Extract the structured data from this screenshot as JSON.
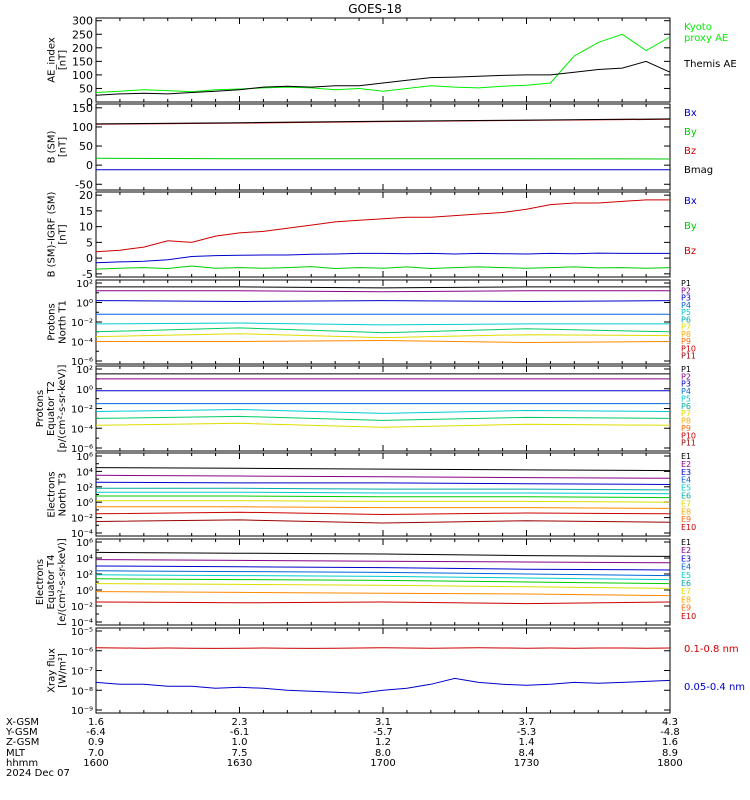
{
  "title": "GOES-18",
  "colors": {
    "black": "#000000",
    "green": "#00cc00",
    "bright_green": "#00ee00",
    "red": "#cc0000",
    "dark_red": "#990000",
    "blue": "#0000cc",
    "navy": "#000088",
    "cyan": "#00cccc",
    "orange": "#ff8800",
    "yellow": "#dddd00",
    "lime": "#66dd00",
    "magenta": "#aa00aa"
  },
  "chart_data": [
    {
      "type": "line",
      "ylabel": "AE_index\n[nT]",
      "yticks": [
        "300",
        "250",
        "200",
        "150",
        "100",
        "50",
        "0"
      ],
      "ylim": [
        0,
        310
      ],
      "x": [
        "1600",
        "1605",
        "1610",
        "1615",
        "1620",
        "1625",
        "1630",
        "1635",
        "1640",
        "1645",
        "1650",
        "1655",
        "1700",
        "1705",
        "1710",
        "1715",
        "1720",
        "1725",
        "1730",
        "1735",
        "1740",
        "1745",
        "1750",
        "1755",
        "1800"
      ],
      "series": [
        {
          "name": "Kyoto\nproxy AE",
          "color": "#00ee00",
          "values": [
            35,
            40,
            45,
            42,
            38,
            45,
            48,
            52,
            55,
            52,
            45,
            50,
            40,
            50,
            60,
            55,
            52,
            58,
            62,
            70,
            170,
            220,
            250,
            190,
            240
          ]
        },
        {
          "name": "Themis AE",
          "color": "#000000",
          "values": [
            25,
            30,
            32,
            30,
            35,
            40,
            45,
            55,
            58,
            55,
            60,
            60,
            70,
            80,
            90,
            92,
            95,
            98,
            100,
            100,
            110,
            120,
            125,
            150,
            110
          ]
        }
      ]
    },
    {
      "type": "line",
      "ylabel": "B (SM)\n[nT]",
      "yticks": [
        "150",
        "100",
        "50",
        "0",
        "-50"
      ],
      "ylim": [
        -65,
        160
      ],
      "x": [
        "1600",
        "1630",
        "1700",
        "1730",
        "1800"
      ],
      "series": [
        {
          "name": "Bx",
          "color": "#0000cc",
          "values": [
            -12,
            -12,
            -12,
            -12,
            -12
          ]
        },
        {
          "name": "By",
          "color": "#00cc00",
          "values": [
            18,
            17,
            17,
            17,
            16
          ]
        },
        {
          "name": "Bz",
          "color": "#cc0000",
          "values": [
            107,
            110,
            114,
            117,
            120
          ]
        },
        {
          "name": "Bmag",
          "color": "#000000",
          "values": [
            108,
            111,
            115,
            118,
            121
          ]
        }
      ]
    },
    {
      "type": "line",
      "ylabel": "B (SM)-IGRF (SM)\n[nT]",
      "yticks": [
        "20",
        "15",
        "10",
        "5",
        "0",
        "-5"
      ],
      "ylim": [
        -6,
        21
      ],
      "x": [
        "1600",
        "1605",
        "1610",
        "1615",
        "1620",
        "1625",
        "1630",
        "1635",
        "1640",
        "1645",
        "1650",
        "1655",
        "1700",
        "1705",
        "1710",
        "1715",
        "1720",
        "1725",
        "1730",
        "1735",
        "1740",
        "1745",
        "1750",
        "1755",
        "1800"
      ],
      "series": [
        {
          "name": "Bx",
          "color": "#0000cc",
          "values": [
            -1.5,
            -1.2,
            -1.0,
            -0.5,
            0.5,
            0.8,
            0.9,
            1.0,
            1.0,
            1.2,
            1.3,
            1.5,
            1.5,
            1.4,
            1.5,
            1.3,
            1.5,
            1.4,
            1.3,
            1.5,
            1.4,
            1.6,
            1.5,
            1.5,
            1.5
          ]
        },
        {
          "name": "By",
          "color": "#00cc00",
          "values": [
            -3.5,
            -3.2,
            -3.0,
            -3.3,
            -2.5,
            -3.2,
            -3.0,
            -3.2,
            -3.0,
            -2.7,
            -3.3,
            -3.0,
            -3.2,
            -2.8,
            -3.3,
            -3.0,
            -2.8,
            -3.0,
            -3.2,
            -3.0,
            -2.8,
            -3.1,
            -3.0,
            -3.2,
            -3.0
          ]
        },
        {
          "name": "Bz",
          "color": "#cc0000",
          "values": [
            2.0,
            2.5,
            3.5,
            5.5,
            5.0,
            7.0,
            8.0,
            8.5,
            9.5,
            10.5,
            11.5,
            12.0,
            12.5,
            13.0,
            13.0,
            13.5,
            14.0,
            14.5,
            15.5,
            17.0,
            17.5,
            17.5,
            18.0,
            18.5,
            18.5
          ]
        }
      ]
    },
    {
      "type": "line",
      "ylabel": "Protons\nNorth T1",
      "yticks": [
        "10²",
        "10⁰",
        "10⁻²",
        "10⁻⁴",
        "10⁻⁶"
      ],
      "legend": [
        "P1",
        "P2",
        "P3",
        "P4",
        "P5",
        "P6",
        "P7",
        "P8",
        "P9",
        "P10",
        "P11"
      ],
      "series": [
        {
          "name": "P1",
          "color": "#000000",
          "log10": [
            1.6,
            1.6,
            1.5,
            1.6,
            1.6
          ]
        },
        {
          "name": "P2",
          "color": "#880088",
          "log10": [
            1.2,
            1.2,
            1.1,
            1.2,
            1.2
          ]
        },
        {
          "name": "P3",
          "color": "#0000cc",
          "log10": [
            0.2,
            0.1,
            0.2,
            0.1,
            0.2
          ]
        },
        {
          "name": "P4",
          "color": "#0066dd",
          "log10": [
            -1.2,
            -1.2,
            -1.2,
            -1.2,
            -1.2
          ]
        },
        {
          "name": "P5",
          "color": "#00cccc",
          "log10": [
            -2.2,
            -2.1,
            -2.3,
            -2.2,
            -2.2
          ]
        },
        {
          "name": "P6",
          "color": "#00cc66",
          "log10": [
            -3.0,
            -2.6,
            -3.1,
            -2.7,
            -3.0
          ]
        },
        {
          "name": "P7",
          "color": "#dddd00",
          "log10": [
            -3.5,
            -3.2,
            -3.6,
            -3.3,
            -3.4
          ]
        },
        {
          "name": "P8",
          "color": "#ff8800",
          "log10": [
            -4.0,
            -4.0,
            -3.9,
            -4.1,
            -4.0
          ]
        }
      ]
    },
    {
      "type": "line",
      "ylabel": "Protons\nEquator T2\n[p/(cm²-s-sr-keV)]",
      "yticks": [
        "10²",
        "10⁰",
        "10⁻²",
        "10⁻⁴",
        "10⁻⁶"
      ],
      "legend": [
        "P1",
        "P2",
        "P3",
        "P4",
        "P5",
        "P6",
        "P7",
        "P8",
        "P9",
        "P10",
        "P11"
      ],
      "series": [
        {
          "name": "P1",
          "color": "#000000",
          "log10": [
            1.5,
            1.5,
            1.5,
            1.5,
            1.5
          ]
        },
        {
          "name": "P2",
          "color": "#880088",
          "log10": [
            1.0,
            1.0,
            1.0,
            1.0,
            1.0
          ]
        },
        {
          "name": "P3",
          "color": "#0000cc",
          "log10": [
            -0.2,
            -0.2,
            -0.2,
            -0.2,
            -0.2
          ]
        },
        {
          "name": "P4",
          "color": "#0066dd",
          "log10": [
            -1.5,
            -1.5,
            -1.5,
            -1.5,
            -1.5
          ]
        },
        {
          "name": "P5",
          "color": "#00cccc",
          "log10": [
            -2.3,
            -2.1,
            -2.5,
            -2.2,
            -2.3
          ]
        },
        {
          "name": "P6",
          "color": "#00cc66",
          "log10": [
            -3.0,
            -2.8,
            -3.2,
            -2.9,
            -3.0
          ]
        },
        {
          "name": "P7",
          "color": "#dddd00",
          "log10": [
            -3.7,
            -3.5,
            -3.9,
            -3.6,
            -3.7
          ]
        }
      ]
    },
    {
      "type": "line",
      "ylabel": "Electrons\nNorth T3",
      "yticks": [
        "10⁶",
        "10⁴",
        "10²",
        "10⁰",
        "10⁻²",
        "10⁻⁴"
      ],
      "legend": [
        "E1",
        "E2",
        "E3",
        "E4",
        "E5",
        "E6",
        "E7",
        "E8",
        "E9",
        "E10"
      ],
      "series": [
        {
          "name": "E1",
          "color": "#000000",
          "log10": [
            4.5,
            4.4,
            4.3,
            4.2,
            4.1
          ]
        },
        {
          "name": "E2",
          "color": "#880088",
          "log10": [
            3.5,
            3.4,
            3.3,
            3.2,
            3.1
          ]
        },
        {
          "name": "E3",
          "color": "#0000cc",
          "log10": [
            2.6,
            2.5,
            2.5,
            2.4,
            2.3
          ]
        },
        {
          "name": "E4",
          "color": "#00aaaa",
          "log10": [
            1.8,
            1.8,
            1.7,
            1.7,
            1.6
          ]
        },
        {
          "name": "E5",
          "color": "#00cccc",
          "log10": [
            1.3,
            1.3,
            1.2,
            1.2,
            1.1
          ]
        },
        {
          "name": "E6",
          "color": "#00cc00",
          "log10": [
            0.8,
            0.8,
            0.7,
            0.7,
            0.6
          ]
        },
        {
          "name": "E7",
          "color": "#dddd00",
          "log10": [
            0.2,
            0.2,
            0.1,
            0.1,
            0.0
          ]
        },
        {
          "name": "E8",
          "color": "#ff8800",
          "log10": [
            -0.6,
            -0.6,
            -0.7,
            -0.7,
            -0.8
          ]
        },
        {
          "name": "E9",
          "color": "#cc0000",
          "log10": [
            -1.5,
            -1.3,
            -1.6,
            -1.4,
            -1.5
          ]
        },
        {
          "name": "E10",
          "color": "#990000",
          "log10": [
            -2.5,
            -2.3,
            -2.7,
            -2.4,
            -2.6
          ]
        }
      ]
    },
    {
      "type": "line",
      "ylabel": "Electrons\nEquator T4\n[e/(cm²-s-sr-keV)]",
      "yticks": [
        "10⁶",
        "10⁴",
        "10²",
        "10⁰",
        "10⁻²",
        "10⁻⁴"
      ],
      "legend": [
        "E1",
        "E2",
        "E3",
        "E4",
        "E5",
        "E6",
        "E7",
        "E8",
        "E9",
        "E10"
      ],
      "series": [
        {
          "name": "E1",
          "color": "#000000",
          "log10": [
            4.7,
            4.6,
            4.5,
            4.3,
            4.2
          ]
        },
        {
          "name": "E2",
          "color": "#880088",
          "log10": [
            3.8,
            3.7,
            3.6,
            3.5,
            3.4
          ]
        },
        {
          "name": "E3",
          "color": "#0000cc",
          "log10": [
            3.0,
            2.9,
            2.8,
            2.6,
            2.5
          ]
        },
        {
          "name": "E4",
          "color": "#0066dd",
          "log10": [
            2.4,
            2.3,
            2.2,
            2.0,
            1.8
          ]
        },
        {
          "name": "E5",
          "color": "#00cccc",
          "log10": [
            1.9,
            1.8,
            1.7,
            1.5,
            1.3
          ]
        },
        {
          "name": "E6",
          "color": "#00cc00",
          "log10": [
            1.4,
            1.3,
            1.2,
            1.0,
            0.8
          ]
        },
        {
          "name": "E7",
          "color": "#dddd00",
          "log10": [
            0.8,
            0.7,
            0.6,
            0.4,
            0.2
          ]
        },
        {
          "name": "E8",
          "color": "#ff8800",
          "log10": [
            -0.2,
            -0.3,
            -0.4,
            -0.5,
            -0.7
          ]
        },
        {
          "name": "E9",
          "color": "#cc0000",
          "log10": [
            -1.5,
            -1.6,
            -1.5,
            -1.7,
            -1.5
          ]
        }
      ]
    },
    {
      "type": "line",
      "ylabel": "Xray flux\n[W/m²]",
      "yticks": [
        "10⁻⁵",
        "10⁻⁶",
        "10⁻⁷",
        "10⁻⁸",
        "10⁻⁹"
      ],
      "legend_labels": [
        "0.1-0.8 nm",
        "0.05-0.4 nm"
      ],
      "series": [
        {
          "name": "0.1-0.8 nm",
          "color": "#cc0000",
          "log10": [
            -5.85,
            -5.86,
            -5.87,
            -5.86,
            -5.87,
            -5.88,
            -5.87,
            -5.86,
            -5.87,
            -5.88,
            -5.87,
            -5.86,
            -5.85,
            -5.86,
            -5.87,
            -5.86,
            -5.85,
            -5.86,
            -5.87,
            -5.86,
            -5.87,
            -5.86,
            -5.86,
            -5.87,
            -5.86
          ]
        },
        {
          "name": "0.05-0.4 nm",
          "color": "#0000cc",
          "log10": [
            -7.6,
            -7.7,
            -7.7,
            -7.8,
            -7.8,
            -7.9,
            -7.85,
            -7.9,
            -8.0,
            -8.05,
            -8.1,
            -8.15,
            -8.0,
            -7.9,
            -7.7,
            -7.4,
            -7.6,
            -7.7,
            -7.75,
            -7.7,
            -7.6,
            -7.65,
            -7.6,
            -7.55,
            -7.5
          ]
        }
      ]
    }
  ],
  "x_axis": {
    "row_labels": [
      "X-GSM",
      "Y-GSM",
      "Z-GSM",
      "MLT",
      "hhmm",
      "2024 Dec 07"
    ],
    "columns": [
      {
        "x_gsm": "1.6",
        "y_gsm": "-6.4",
        "z_gsm": "0.9",
        "mlt": "7.0",
        "hhmm": "1600"
      },
      {
        "x_gsm": "2.3",
        "y_gsm": "-6.1",
        "z_gsm": "1.0",
        "mlt": "7.5",
        "hhmm": "1630"
      },
      {
        "x_gsm": "3.1",
        "y_gsm": "-5.7",
        "z_gsm": "1.2",
        "mlt": "8.0",
        "hhmm": "1700"
      },
      {
        "x_gsm": "3.7",
        "y_gsm": "-5.3",
        "z_gsm": "1.4",
        "mlt": "8.4",
        "hhmm": "1730"
      },
      {
        "x_gsm": "4.3",
        "y_gsm": "-4.8",
        "z_gsm": "1.6",
        "mlt": "8.9",
        "hhmm": "1800"
      }
    ]
  }
}
